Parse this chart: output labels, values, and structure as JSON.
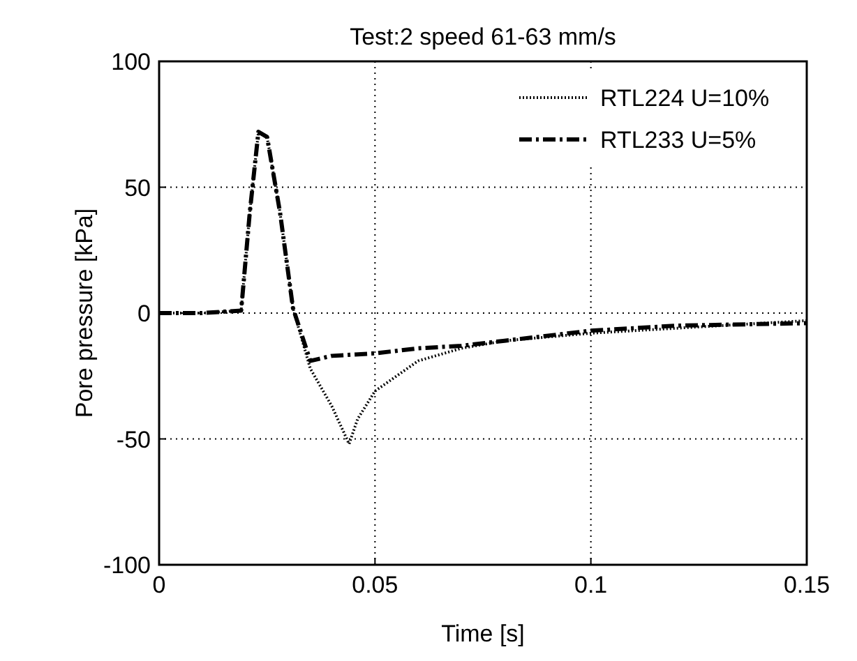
{
  "chart_data": {
    "type": "line",
    "title": "Test:2 speed 61-63 mm/s",
    "xlabel": "Time [s]",
    "ylabel": "Pore pressure [kPa]",
    "xlim": [
      0,
      0.15
    ],
    "xticks": [
      0,
      0.05,
      0.1,
      0.15
    ],
    "ylim": [
      -100,
      100
    ],
    "yticks": [
      -100,
      -50,
      0,
      50,
      100
    ],
    "grid": true,
    "legend": "top right",
    "series": [
      {
        "name": "RTL224 U=10%",
        "color": "#000000",
        "line_style": "dotted",
        "x": [
          0,
          0.01,
          0.019,
          0.021,
          0.023,
          0.025,
          0.028,
          0.031,
          0.035,
          0.04,
          0.044,
          0.046,
          0.05,
          0.06,
          0.07,
          0.08,
          0.1,
          0.12,
          0.15
        ],
        "values": [
          0,
          0,
          1,
          40,
          72,
          70,
          40,
          2,
          -22,
          -37,
          -52,
          -42,
          -31,
          -19,
          -14,
          -11,
          -8,
          -6,
          -3
        ]
      },
      {
        "name": "RTL233 U=5%",
        "color": "#000000",
        "line_style": "dashdot",
        "x": [
          0,
          0.01,
          0.019,
          0.021,
          0.023,
          0.025,
          0.028,
          0.031,
          0.035,
          0.04,
          0.05,
          0.06,
          0.07,
          0.08,
          0.1,
          0.12,
          0.15
        ],
        "values": [
          0,
          0,
          1,
          40,
          72,
          70,
          40,
          2,
          -19,
          -17,
          -16,
          -14,
          -13,
          -11,
          -7,
          -5,
          -4
        ]
      }
    ]
  }
}
